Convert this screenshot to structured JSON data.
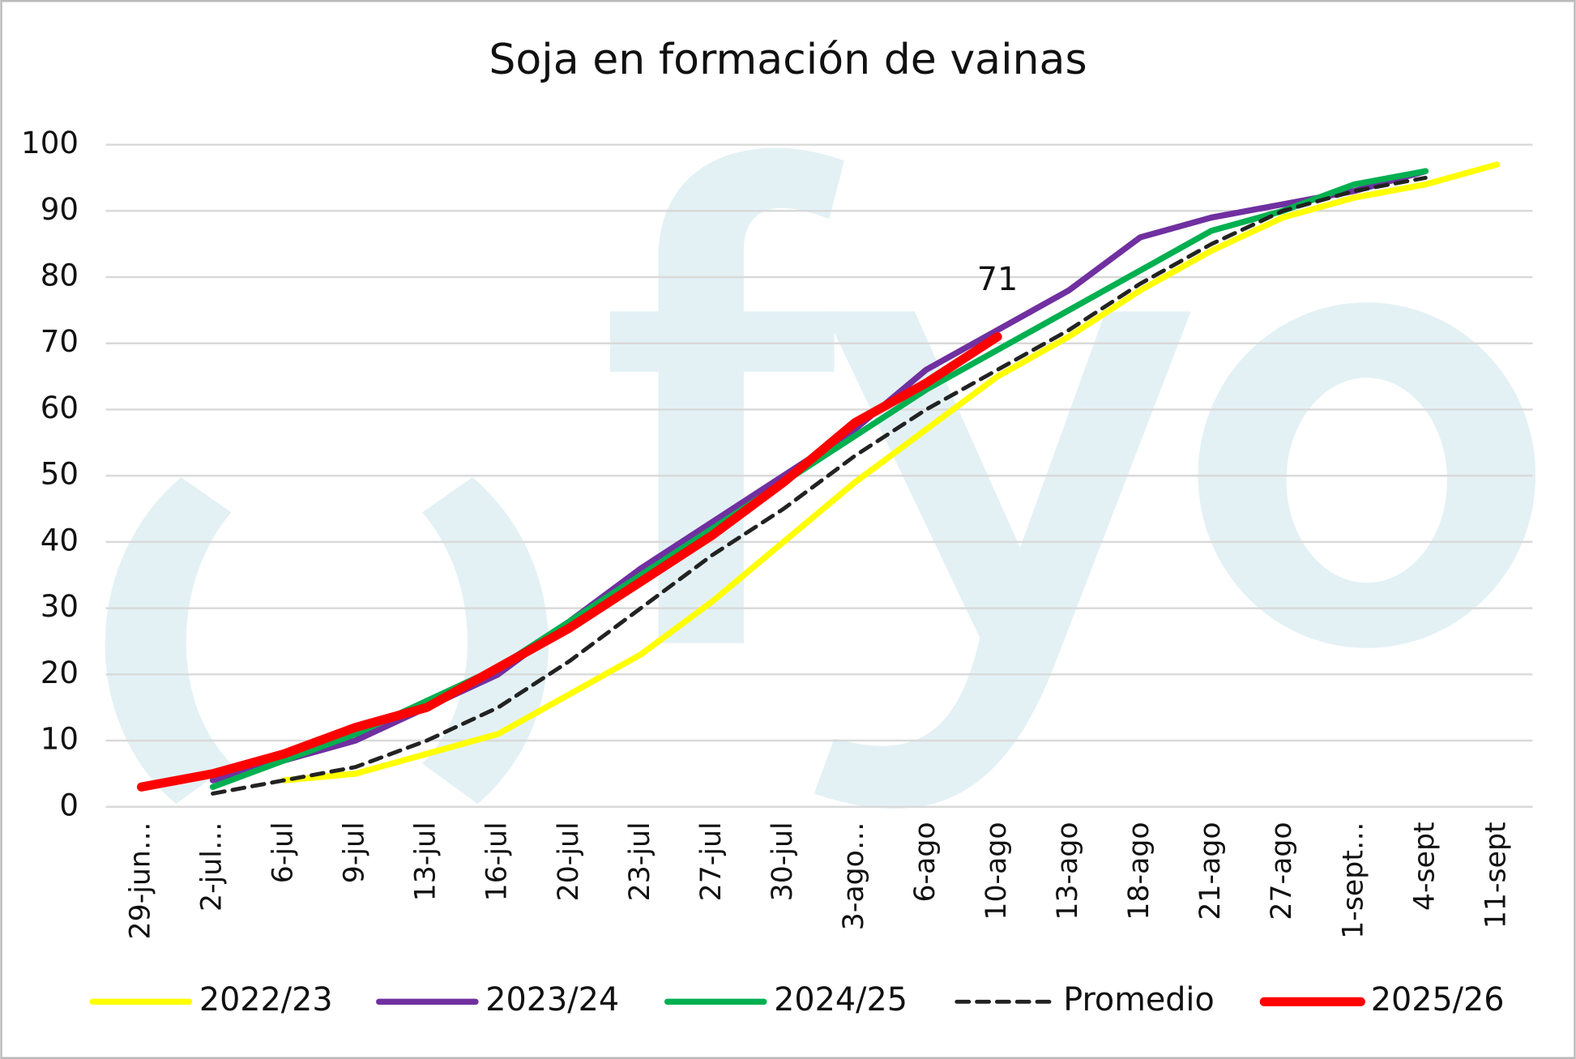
{
  "chart_data": {
    "type": "line",
    "title": "Soja en formación de vainas",
    "categories": [
      "29-jun…",
      "2-jul…",
      "6-jul",
      "9-jul",
      "13-jul",
      "16-jul",
      "20-jul",
      "23-jul",
      "27-jul",
      "30-jul",
      "3-ago…",
      "6-ago",
      "10-ago",
      "13-ago",
      "18-ago",
      "21-ago",
      "27-ago",
      "1-sept…",
      "4-sept",
      "11-sept"
    ],
    "series": [
      {
        "name": "2022/23",
        "color": "#ffff00",
        "dash": false,
        "values": [
          null,
          null,
          4,
          5,
          8,
          11,
          17,
          23,
          31,
          40,
          49,
          57,
          65,
          71,
          78,
          84,
          89,
          92,
          94,
          97
        ]
      },
      {
        "name": "2023/24",
        "color": "#7030a0",
        "dash": false,
        "values": [
          null,
          4,
          7,
          10,
          15,
          20,
          28,
          36,
          43,
          50,
          57,
          66,
          72,
          78,
          86,
          89,
          91,
          93,
          96,
          null
        ]
      },
      {
        "name": "2024/25",
        "color": "#00b050",
        "dash": false,
        "values": [
          null,
          3,
          7,
          11,
          16,
          21,
          28,
          35,
          42,
          49,
          56,
          63,
          69,
          75,
          81,
          87,
          90,
          94,
          96,
          null
        ]
      },
      {
        "name": "Promedio",
        "color": "#222222",
        "dash": true,
        "values": [
          null,
          2,
          4,
          6,
          10,
          15,
          22,
          30,
          38,
          45,
          53,
          60,
          66,
          72,
          79,
          85,
          90,
          93,
          95,
          null
        ]
      },
      {
        "name": "2025/26",
        "color": "#ff0000",
        "dash": false,
        "values": [
          3,
          5,
          8,
          12,
          15,
          21,
          27,
          34,
          41,
          49,
          58,
          64,
          71,
          null,
          null,
          null,
          null,
          null,
          null,
          null
        ]
      }
    ],
    "annotations": [
      {
        "text": "71",
        "series": 4,
        "index": 12
      }
    ],
    "ylim": [
      0,
      100
    ],
    "yticks": [
      0,
      10,
      20,
      30,
      40,
      50,
      60,
      70,
      80,
      90,
      100
    ],
    "grid": true,
    "legend": "bottom"
  }
}
